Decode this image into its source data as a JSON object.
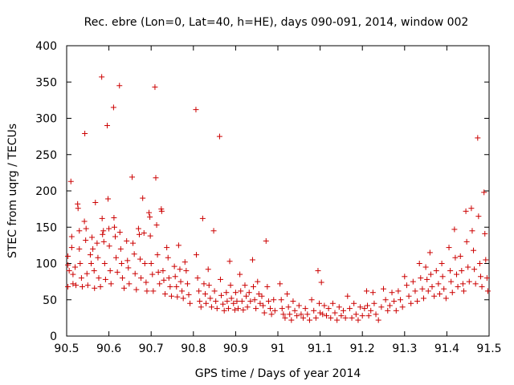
{
  "chart_data": {
    "type": "scatter",
    "title": "Rec. ebre (Lon=0, Lat=40, h=HE), days 090-091, 2014, window 002",
    "xlabel": "GPS time / Days of year 2014",
    "ylabel": "STEC from uqrg / TECUs",
    "xlim": [
      90.5,
      91.5
    ],
    "ylim": [
      0,
      400
    ],
    "xticks": [
      "90.5",
      "90.6",
      "90.7",
      "90.8",
      "90.9",
      "91",
      "91.1",
      "91.2",
      "91.3",
      "91.4",
      "91.5"
    ],
    "yticks": [
      "0",
      "50",
      "100",
      "150",
      "200",
      "250",
      "300",
      "350",
      "400"
    ],
    "grid": false,
    "marker": "+",
    "color": "#cc0000",
    "series": [
      {
        "points": [
          [
            90.503,
            110
          ],
          [
            90.503,
            98
          ],
          [
            90.503,
            68
          ],
          [
            90.506,
            90
          ],
          [
            90.51,
            213
          ],
          [
            90.512,
            137
          ],
          [
            90.512,
            122
          ],
          [
            90.515,
            85
          ],
          [
            90.515,
            72
          ],
          [
            90.52,
            95
          ],
          [
            90.522,
            70
          ],
          [
            90.526,
            182
          ],
          [
            90.527,
            176
          ],
          [
            90.53,
            145
          ],
          [
            90.53,
            120
          ],
          [
            90.532,
            100
          ],
          [
            90.535,
            80
          ],
          [
            90.537,
            68
          ],
          [
            90.542,
            158
          ],
          [
            90.543,
            279
          ],
          [
            90.545,
            132
          ],
          [
            90.546,
            148
          ],
          [
            90.548,
            86
          ],
          [
            90.55,
            70
          ],
          [
            90.556,
            112
          ],
          [
            90.558,
            100
          ],
          [
            90.56,
            136
          ],
          [
            90.562,
            120
          ],
          [
            90.565,
            90
          ],
          [
            90.566,
            66
          ],
          [
            90.568,
            184
          ],
          [
            90.572,
            128
          ],
          [
            90.574,
            108
          ],
          [
            90.576,
            80
          ],
          [
            90.58,
            68
          ],
          [
            90.583,
            357
          ],
          [
            90.584,
            162
          ],
          [
            90.585,
            140
          ],
          [
            90.587,
            145
          ],
          [
            90.588,
            130
          ],
          [
            90.59,
            100
          ],
          [
            90.592,
            78
          ],
          [
            90.596,
            290
          ],
          [
            90.598,
            189
          ],
          [
            90.6,
            148
          ],
          [
            90.601,
            124
          ],
          [
            90.603,
            90
          ],
          [
            90.605,
            72
          ],
          [
            90.611,
            315
          ],
          [
            90.612,
            163
          ],
          [
            90.613,
            150
          ],
          [
            90.615,
            137
          ],
          [
            90.617,
            108
          ],
          [
            90.62,
            88
          ],
          [
            90.625,
            345
          ],
          [
            90.626,
            143
          ],
          [
            90.628,
            120
          ],
          [
            90.63,
            100
          ],
          [
            90.632,
            80
          ],
          [
            90.636,
            66
          ],
          [
            90.642,
            131
          ],
          [
            90.644,
            104
          ],
          [
            90.646,
            94
          ],
          [
            90.648,
            72
          ],
          [
            90.655,
            219
          ],
          [
            90.657,
            128
          ],
          [
            90.66,
            113
          ],
          [
            90.662,
            86
          ],
          [
            90.665,
            64
          ],
          [
            90.67,
            148
          ],
          [
            90.672,
            140
          ],
          [
            90.674,
            106
          ],
          [
            90.676,
            80
          ],
          [
            90.68,
            190
          ],
          [
            90.683,
            142
          ],
          [
            90.685,
            100
          ],
          [
            90.688,
            74
          ],
          [
            90.69,
            62
          ],
          [
            90.695,
            170
          ],
          [
            90.697,
            164
          ],
          [
            90.698,
            138
          ],
          [
            90.7,
            100
          ],
          [
            90.703,
            85
          ],
          [
            90.705,
            62
          ],
          [
            90.709,
            343
          ],
          [
            90.711,
            218
          ],
          [
            90.713,
            153
          ],
          [
            90.715,
            112
          ],
          [
            90.717,
            88
          ],
          [
            90.72,
            72
          ],
          [
            90.724,
            175
          ],
          [
            90.725,
            172
          ],
          [
            90.728,
            90
          ],
          [
            90.73,
            77
          ],
          [
            90.733,
            58
          ],
          [
            90.737,
            122
          ],
          [
            90.74,
            108
          ],
          [
            90.742,
            80
          ],
          [
            90.745,
            68
          ],
          [
            90.748,
            55
          ],
          [
            90.755,
            96
          ],
          [
            90.757,
            82
          ],
          [
            90.76,
            68
          ],
          [
            90.762,
            54
          ],
          [
            90.765,
            125
          ],
          [
            90.768,
            92
          ],
          [
            90.77,
            75
          ],
          [
            90.773,
            62
          ],
          [
            90.776,
            52
          ],
          [
            90.78,
            102
          ],
          [
            90.783,
            90
          ],
          [
            90.786,
            72
          ],
          [
            90.789,
            57
          ],
          [
            90.792,
            45
          ],
          [
            90.806,
            312
          ],
          [
            90.807,
            112
          ],
          [
            90.81,
            80
          ],
          [
            90.813,
            62
          ],
          [
            90.815,
            48
          ],
          [
            90.818,
            40
          ],
          [
            90.822,
            162
          ],
          [
            90.825,
            72
          ],
          [
            90.828,
            58
          ],
          [
            90.83,
            45
          ],
          [
            90.835,
            92
          ],
          [
            90.837,
            70
          ],
          [
            90.84,
            52
          ],
          [
            90.843,
            40
          ],
          [
            90.848,
            145
          ],
          [
            90.85,
            62
          ],
          [
            90.853,
            48
          ],
          [
            90.856,
            38
          ],
          [
            90.862,
            275
          ],
          [
            90.864,
            78
          ],
          [
            90.866,
            56
          ],
          [
            90.87,
            44
          ],
          [
            90.873,
            35
          ],
          [
            90.878,
            60
          ],
          [
            90.88,
            48
          ],
          [
            90.883,
            38
          ],
          [
            90.886,
            103
          ],
          [
            90.888,
            70
          ],
          [
            90.89,
            52
          ],
          [
            90.895,
            45
          ],
          [
            90.898,
            36
          ],
          [
            90.9,
            60
          ],
          [
            90.903,
            48
          ],
          [
            90.906,
            38
          ],
          [
            90.91,
            85
          ],
          [
            90.912,
            62
          ],
          [
            90.915,
            48
          ],
          [
            90.918,
            36
          ],
          [
            90.922,
            70
          ],
          [
            90.925,
            55
          ],
          [
            90.928,
            40
          ],
          [
            90.932,
            60
          ],
          [
            90.935,
            48
          ],
          [
            90.94,
            105
          ],
          [
            90.942,
            68
          ],
          [
            90.945,
            50
          ],
          [
            90.948,
            38
          ],
          [
            90.952,
            75
          ],
          [
            90.955,
            58
          ],
          [
            90.958,
            45
          ],
          [
            90.962,
            55
          ],
          [
            90.965,
            42
          ],
          [
            90.968,
            32
          ],
          [
            90.972,
            131
          ],
          [
            90.975,
            68
          ],
          [
            90.978,
            48
          ],
          [
            90.982,
            38
          ],
          [
            90.985,
            30
          ],
          [
            90.99,
            50
          ],
          [
            90.993,
            35
          ],
          [
            91.005,
            72
          ],
          [
            91.008,
            50
          ],
          [
            91.01,
            38
          ],
          [
            91.013,
            30
          ],
          [
            91.017,
            25
          ],
          [
            91.022,
            58
          ],
          [
            91.025,
            40
          ],
          [
            91.028,
            30
          ],
          [
            91.032,
            22
          ],
          [
            91.036,
            48
          ],
          [
            91.04,
            35
          ],
          [
            91.045,
            28
          ],
          [
            91.05,
            42
          ],
          [
            91.055,
            30
          ],
          [
            91.06,
            25
          ],
          [
            91.065,
            38
          ],
          [
            91.07,
            30
          ],
          [
            91.075,
            22
          ],
          [
            91.08,
            50
          ],
          [
            91.085,
            35
          ],
          [
            91.09,
            25
          ],
          [
            91.095,
            90
          ],
          [
            91.098,
            45
          ],
          [
            91.1,
            32
          ],
          [
            91.103,
            74
          ],
          [
            91.106,
            30
          ],
          [
            91.11,
            42
          ],
          [
            91.115,
            28
          ],
          [
            91.12,
            38
          ],
          [
            91.125,
            25
          ],
          [
            91.13,
            45
          ],
          [
            91.135,
            32
          ],
          [
            91.14,
            22
          ],
          [
            91.145,
            40
          ],
          [
            91.15,
            28
          ],
          [
            91.155,
            35
          ],
          [
            91.16,
            25
          ],
          [
            91.165,
            55
          ],
          [
            91.17,
            38
          ],
          [
            91.175,
            25
          ],
          [
            91.18,
            45
          ],
          [
            91.185,
            30
          ],
          [
            91.19,
            22
          ],
          [
            91.195,
            40
          ],
          [
            91.2,
            28
          ],
          [
            91.205,
            38
          ],
          [
            91.21,
            62
          ],
          [
            91.212,
            42
          ],
          [
            91.215,
            28
          ],
          [
            91.22,
            35
          ],
          [
            91.225,
            60
          ],
          [
            91.228,
            45
          ],
          [
            91.232,
            30
          ],
          [
            91.238,
            22
          ],
          [
            91.245,
            40
          ],
          [
            91.25,
            65
          ],
          [
            91.255,
            50
          ],
          [
            91.26,
            35
          ],
          [
            91.265,
            42
          ],
          [
            91.27,
            60
          ],
          [
            91.275,
            48
          ],
          [
            91.28,
            35
          ],
          [
            91.285,
            62
          ],
          [
            91.29,
            50
          ],
          [
            91.295,
            40
          ],
          [
            91.3,
            82
          ],
          [
            91.305,
            70
          ],
          [
            91.31,
            55
          ],
          [
            91.315,
            45
          ],
          [
            91.32,
            75
          ],
          [
            91.325,
            62
          ],
          [
            91.33,
            48
          ],
          [
            91.335,
            100
          ],
          [
            91.338,
            80
          ],
          [
            91.342,
            65
          ],
          [
            91.345,
            52
          ],
          [
            91.35,
            95
          ],
          [
            91.353,
            78
          ],
          [
            91.356,
            62
          ],
          [
            91.36,
            115
          ],
          [
            91.362,
            85
          ],
          [
            91.365,
            68
          ],
          [
            91.37,
            55
          ],
          [
            91.375,
            90
          ],
          [
            91.38,
            72
          ],
          [
            91.383,
            58
          ],
          [
            91.388,
            100
          ],
          [
            91.39,
            82
          ],
          [
            91.393,
            65
          ],
          [
            91.398,
            52
          ],
          [
            91.405,
            122
          ],
          [
            91.408,
            90
          ],
          [
            91.41,
            75
          ],
          [
            91.413,
            60
          ],
          [
            91.418,
            147
          ],
          [
            91.42,
            108
          ],
          [
            91.423,
            85
          ],
          [
            91.426,
            68
          ],
          [
            91.432,
            110
          ],
          [
            91.435,
            90
          ],
          [
            91.438,
            72
          ],
          [
            91.44,
            62
          ],
          [
            91.445,
            172
          ],
          [
            91.447,
            130
          ],
          [
            91.45,
            95
          ],
          [
            91.453,
            75
          ],
          [
            91.458,
            176
          ],
          [
            91.46,
            145
          ],
          [
            91.463,
            118
          ],
          [
            91.465,
            92
          ],
          [
            91.468,
            72
          ],
          [
            91.473,
            273
          ],
          [
            91.475,
            165
          ],
          [
            91.478,
            100
          ],
          [
            91.48,
            82
          ],
          [
            91.483,
            68
          ],
          [
            91.488,
            198
          ],
          [
            91.49,
            141
          ],
          [
            91.492,
            105
          ],
          [
            91.495,
            80
          ],
          [
            91.497,
            62
          ]
        ]
      }
    ]
  }
}
